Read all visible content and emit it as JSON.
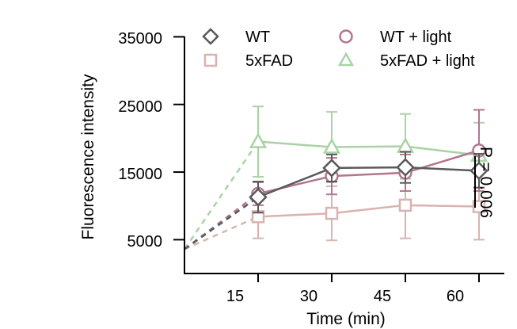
{
  "chart_data": {
    "type": "line",
    "xlabel": "Time (min)",
    "ylabel": "Fluorescence intensity",
    "x": [
      15,
      30,
      45,
      60
    ],
    "x_ticks": [
      "15",
      "30",
      "45",
      "60"
    ],
    "y_ticks": [
      "5000",
      "15000",
      "25000",
      "35000"
    ],
    "ylim": [
      0,
      35000
    ],
    "extrapolated_origin": {
      "x": 0,
      "y": 3600
    },
    "grid": false,
    "legend_position": "top",
    "series": [
      {
        "name": "WT",
        "marker": "diamond",
        "color": "#5a5a5a",
        "values": [
          11300,
          15600,
          15700,
          15200
        ],
        "errors": [
          2300,
          2000,
          2300,
          2500
        ]
      },
      {
        "name": "5xFAD",
        "marker": "square",
        "color": "#d9b3b0",
        "values": [
          8400,
          8900,
          10100,
          9900
        ],
        "errors": [
          3200,
          4000,
          4900,
          4900
        ]
      },
      {
        "name": "WT + light",
        "marker": "circle",
        "color": "#b27690",
        "values": [
          11800,
          14400,
          14900,
          18200
        ],
        "errors": [
          1700,
          2700,
          2700,
          6000
        ]
      },
      {
        "name": "5xFAD + light",
        "marker": "triangle",
        "color": "#a9d3a4",
        "values": [
          19500,
          18700,
          18800,
          17500
        ],
        "errors": [
          5200,
          5200,
          4800,
          4800
        ]
      }
    ],
    "annotation": "P = 0.006"
  }
}
